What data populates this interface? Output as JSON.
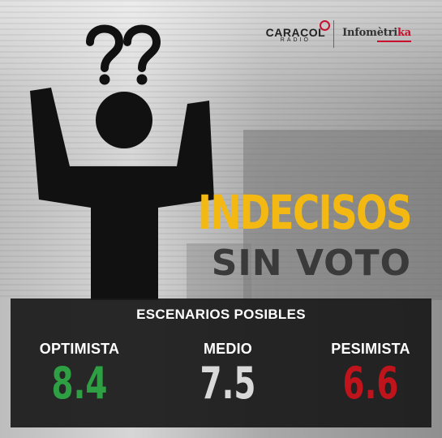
{
  "logos": {
    "caracol_name": "CARACOL",
    "caracol_sub": "RADIO",
    "infometrika_main": "Infomètri",
    "infometrika_accent": "ka"
  },
  "headline": {
    "line1": "INDECISOS",
    "line2": "SIN VOTO"
  },
  "panel": {
    "title": "ESCENARIOS POSIBLES",
    "scenarios": [
      {
        "label": "OPTIMISTA",
        "value": "8.4",
        "color": "#2ea043"
      },
      {
        "label": "MEDIO",
        "value": "7.5",
        "color": "#d9d9d9"
      },
      {
        "label": "PESIMISTA",
        "value": "6.6",
        "color": "#c0141c"
      }
    ]
  },
  "colors": {
    "headline_primary": "#f3b912",
    "headline_secondary": "#3a3a3a",
    "panel_bg": "#1a1a1a",
    "brand_red": "#c8102e"
  },
  "icons": {
    "figure": "confused-person-icon",
    "question_marks": "question-marks-icon"
  }
}
